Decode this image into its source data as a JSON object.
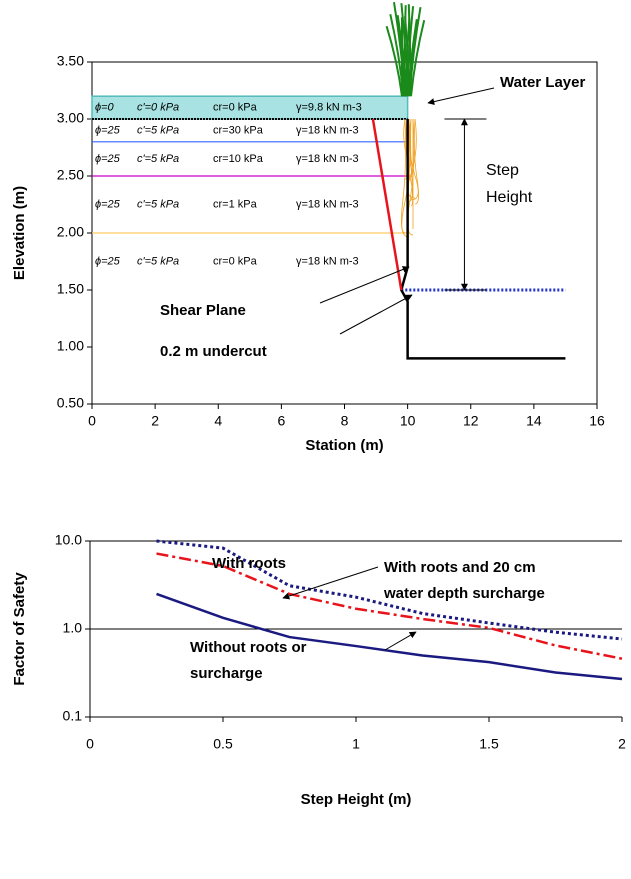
{
  "chart_data": [
    {
      "type": "profile",
      "xlabel": "Station (m)",
      "ylabel": "Elevation (m)",
      "xlim": [
        0,
        16
      ],
      "ylim": [
        0.5,
        3.5
      ],
      "xticks": [
        0,
        2,
        4,
        6,
        8,
        10,
        12,
        14,
        16
      ],
      "yticks": [
        {
          "value": 0.5,
          "label": "0.50"
        },
        {
          "value": 1.0,
          "label": "1.00"
        },
        {
          "value": 1.5,
          "label": "1.50"
        },
        {
          "value": 2.0,
          "label": "2.00"
        },
        {
          "value": 2.5,
          "label": "2.50"
        },
        {
          "value": 3.0,
          "label": "3.00"
        },
        {
          "value": 3.5,
          "label": "3.50"
        }
      ],
      "water_layer": {
        "x": [
          0,
          10
        ],
        "y": [
          3.0,
          3.2
        ],
        "color": "#a8e2e2"
      },
      "boundary_x": [
        0,
        10
      ],
      "boundaries": [
        {
          "y": 3.0,
          "color": "#000000"
        },
        {
          "y": 2.8,
          "color": "#3366ff"
        },
        {
          "y": 2.5,
          "color": "#cc00cc"
        },
        {
          "y": 2.0,
          "color": "#ffcc66"
        }
      ],
      "layer_labels": [
        {
          "phi": "ϕ=0",
          "c": "c'=0 kPa",
          "cr": "cr=0 kPa",
          "gamma": "γ=9.8 kN m-3"
        },
        {
          "phi": "ϕ=25",
          "c": "c'=5 kPa",
          "cr": "cr=30 kPa",
          "gamma": "γ=18 kN m-3"
        },
        {
          "phi": "ϕ=25",
          "c": "c'=5 kPa",
          "cr": "cr=10 kPa",
          "gamma": "γ=18 kN m-3"
        },
        {
          "phi": "ϕ=25",
          "c": "c'=5 kPa",
          "cr": "cr=1 kPa",
          "gamma": "γ=18 kN m-3"
        },
        {
          "phi": "ϕ=25",
          "c": "c'=5 kPa",
          "cr": "cr=0 kPa",
          "gamma": "γ=18 kN m-3"
        }
      ],
      "bank": {
        "x": [
          10,
          10,
          9.8,
          10,
          10,
          15
        ],
        "y": [
          3.0,
          1.7,
          1.5,
          1.4,
          0.9,
          0.9
        ],
        "color": "#000000"
      },
      "shear_plane": {
        "x": [
          8.9,
          9.8
        ],
        "y": [
          3.0,
          1.5
        ],
        "color": "#e8141c"
      },
      "water_surface": {
        "x": [
          9.8,
          15
        ],
        "y": [
          1.5,
          1.5
        ],
        "color": "#2233cc"
      },
      "step_height": {
        "x": 11.8,
        "y": [
          3.0,
          1.5
        ]
      },
      "annotations": [
        {
          "lines": [
            "Water Layer"
          ],
          "color": "#1a1aff"
        },
        {
          "lines": [
            "Step",
            "Height"
          ],
          "color": "#000000"
        },
        {
          "lines": [
            "Shear Plane"
          ],
          "color": "#e8141c"
        },
        {
          "lines": [
            "0.2 m undercut"
          ],
          "color": "#1a1aff"
        }
      ]
    },
    {
      "type": "line",
      "log_y": true,
      "grid": true,
      "xlabel": "Step Height (m)",
      "ylabel": "Factor of Safety",
      "xlim": [
        0,
        2
      ],
      "ylim": [
        0.1,
        10
      ],
      "xticks": [
        0,
        0.5,
        1,
        1.5,
        2
      ],
      "yticks": [
        {
          "value": 0.1,
          "label": "0.1"
        },
        {
          "value": 1,
          "label": "1.0"
        },
        {
          "value": 10,
          "label": "10.0"
        }
      ],
      "x": [
        0.25,
        0.5,
        0.75,
        1.0,
        1.25,
        1.5,
        1.75,
        2.0
      ],
      "series": [
        {
          "color": "#1a1a80",
          "style": "dotted",
          "values": [
            10.0,
            8.3,
            3.1,
            2.3,
            1.5,
            1.17,
            0.92,
            0.77
          ]
        },
        {
          "color": "#e8141c",
          "style": "dashdot",
          "values": [
            7.2,
            5.2,
            2.5,
            1.7,
            1.3,
            1.03,
            0.65,
            0.46
          ]
        },
        {
          "color": "#1a1a80",
          "style": "solid",
          "values": [
            2.5,
            1.34,
            0.81,
            0.64,
            0.5,
            0.42,
            0.32,
            0.27
          ]
        }
      ],
      "annotations": [
        {
          "lines": [
            "With roots"
          ],
          "color": "#1a1a80"
        },
        {
          "lines": [
            "With roots and 20 cm",
            "water depth surcharge"
          ],
          "color": "#e8141c"
        },
        {
          "lines": [
            "Without roots or",
            "surcharge"
          ],
          "color": "#1a1a80"
        }
      ]
    }
  ]
}
